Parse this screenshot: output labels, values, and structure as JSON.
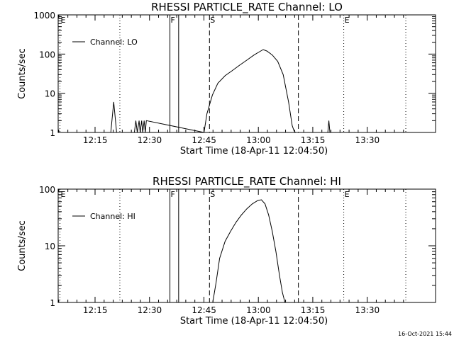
{
  "footer_timestamp": "16-Oct-2021 15:44",
  "chart_data": [
    {
      "type": "line",
      "title": "RHESSI PARTICLE_RATE Channel: LO",
      "xlabel": "Start Time (18-Apr-11 12:04:50)",
      "ylabel": "Counts/sec",
      "x_unit": "minutes after 12:04:50",
      "xlim": [
        0,
        104
      ],
      "ylim": [
        1,
        1000
      ],
      "yscale": "log",
      "grid": false,
      "legend_position": "top-left",
      "x_tick_labels": [
        {
          "label": "12:15",
          "x": 10.2
        },
        {
          "label": "12:30",
          "x": 25.2
        },
        {
          "label": "12:45",
          "x": 40.2
        },
        {
          "label": "13:00",
          "x": 55.2
        },
        {
          "label": "13:15",
          "x": 70.2
        },
        {
          "label": "13:30",
          "x": 85.2
        }
      ],
      "y_tick_labels": [
        {
          "label": "1",
          "y": 1
        },
        {
          "label": "10",
          "y": 10
        },
        {
          "label": "100",
          "y": 100
        },
        {
          "label": "1000",
          "y": 1000
        }
      ],
      "series": [
        {
          "name": "Channel: LO",
          "x": [
            14.5,
            15.3,
            16.1,
            21.0,
            21.4,
            21.8,
            22.3,
            22.6,
            23.0,
            23.3,
            23.7,
            24.0,
            24.3,
            40.2,
            41.0,
            42.5,
            44.0,
            46.0,
            48.0,
            50.0,
            52.0,
            54.0,
            55.5,
            56.5,
            57.5,
            59.0,
            60.5,
            62.0,
            63.5,
            64.5,
            65.0,
            65.4,
            74.3,
            74.6,
            74.9
          ],
          "y": [
            1,
            6,
            1,
            1,
            2,
            1,
            2,
            1,
            2,
            1,
            2,
            1,
            2,
            1,
            3,
            9,
            18,
            28,
            38,
            52,
            70,
            95,
            115,
            130,
            120,
            95,
            65,
            30,
            6,
            1.5,
            1.1,
            1,
            1,
            2,
            1
          ]
        }
      ],
      "markers": [
        {
          "label": "E",
          "x": 0.5,
          "style": "dotted"
        },
        {
          "label": "",
          "x": 17.0,
          "style": "dotted"
        },
        {
          "label": "F",
          "x": 30.8,
          "style": "solid"
        },
        {
          "label": "",
          "x": 33.2,
          "style": "solid"
        },
        {
          "label": "S",
          "x": 41.7,
          "style": "dashed"
        },
        {
          "label": "",
          "x": 66.2,
          "style": "dashed"
        },
        {
          "label": "E",
          "x": 78.7,
          "style": "dotted"
        },
        {
          "label": "",
          "x": 95.8,
          "style": "dotted"
        }
      ]
    },
    {
      "type": "line",
      "title": "RHESSI PARTICLE_RATE Channel: HI",
      "xlabel": "Start Time (18-Apr-11 12:04:50)",
      "ylabel": "Counts/sec",
      "x_unit": "minutes after 12:04:50",
      "xlim": [
        0,
        104
      ],
      "ylim": [
        1,
        100
      ],
      "yscale": "log",
      "grid": false,
      "legend_position": "top-left",
      "x_tick_labels": [
        {
          "label": "12:15",
          "x": 10.2
        },
        {
          "label": "12:30",
          "x": 25.2
        },
        {
          "label": "12:45",
          "x": 40.2
        },
        {
          "label": "13:00",
          "x": 55.2
        },
        {
          "label": "13:15",
          "x": 70.2
        },
        {
          "label": "13:30",
          "x": 85.2
        }
      ],
      "y_tick_labels": [
        {
          "label": "1",
          "y": 1
        },
        {
          "label": "10",
          "y": 10
        },
        {
          "label": "100",
          "y": 100
        }
      ],
      "series": [
        {
          "name": "Channel: HI",
          "x": [
            42.6,
            43.5,
            44.5,
            46.0,
            47.5,
            49.0,
            50.5,
            52.0,
            53.5,
            55.0,
            56.0,
            57.0,
            58.0,
            59.0,
            60.0,
            61.0,
            61.8,
            62.5
          ],
          "y": [
            1,
            2.2,
            6,
            12,
            18,
            26,
            35,
            45,
            55,
            63,
            65,
            55,
            35,
            18,
            8,
            3,
            1.5,
            1
          ]
        }
      ],
      "markers": [
        {
          "label": "E",
          "x": 0.5,
          "style": "dotted"
        },
        {
          "label": "",
          "x": 17.0,
          "style": "dotted"
        },
        {
          "label": "F",
          "x": 30.8,
          "style": "solid"
        },
        {
          "label": "",
          "x": 33.2,
          "style": "solid"
        },
        {
          "label": "S",
          "x": 41.7,
          "style": "dashed"
        },
        {
          "label": "",
          "x": 66.2,
          "style": "dashed"
        },
        {
          "label": "E",
          "x": 78.7,
          "style": "dotted"
        },
        {
          "label": "",
          "x": 95.8,
          "style": "dotted"
        }
      ]
    }
  ]
}
